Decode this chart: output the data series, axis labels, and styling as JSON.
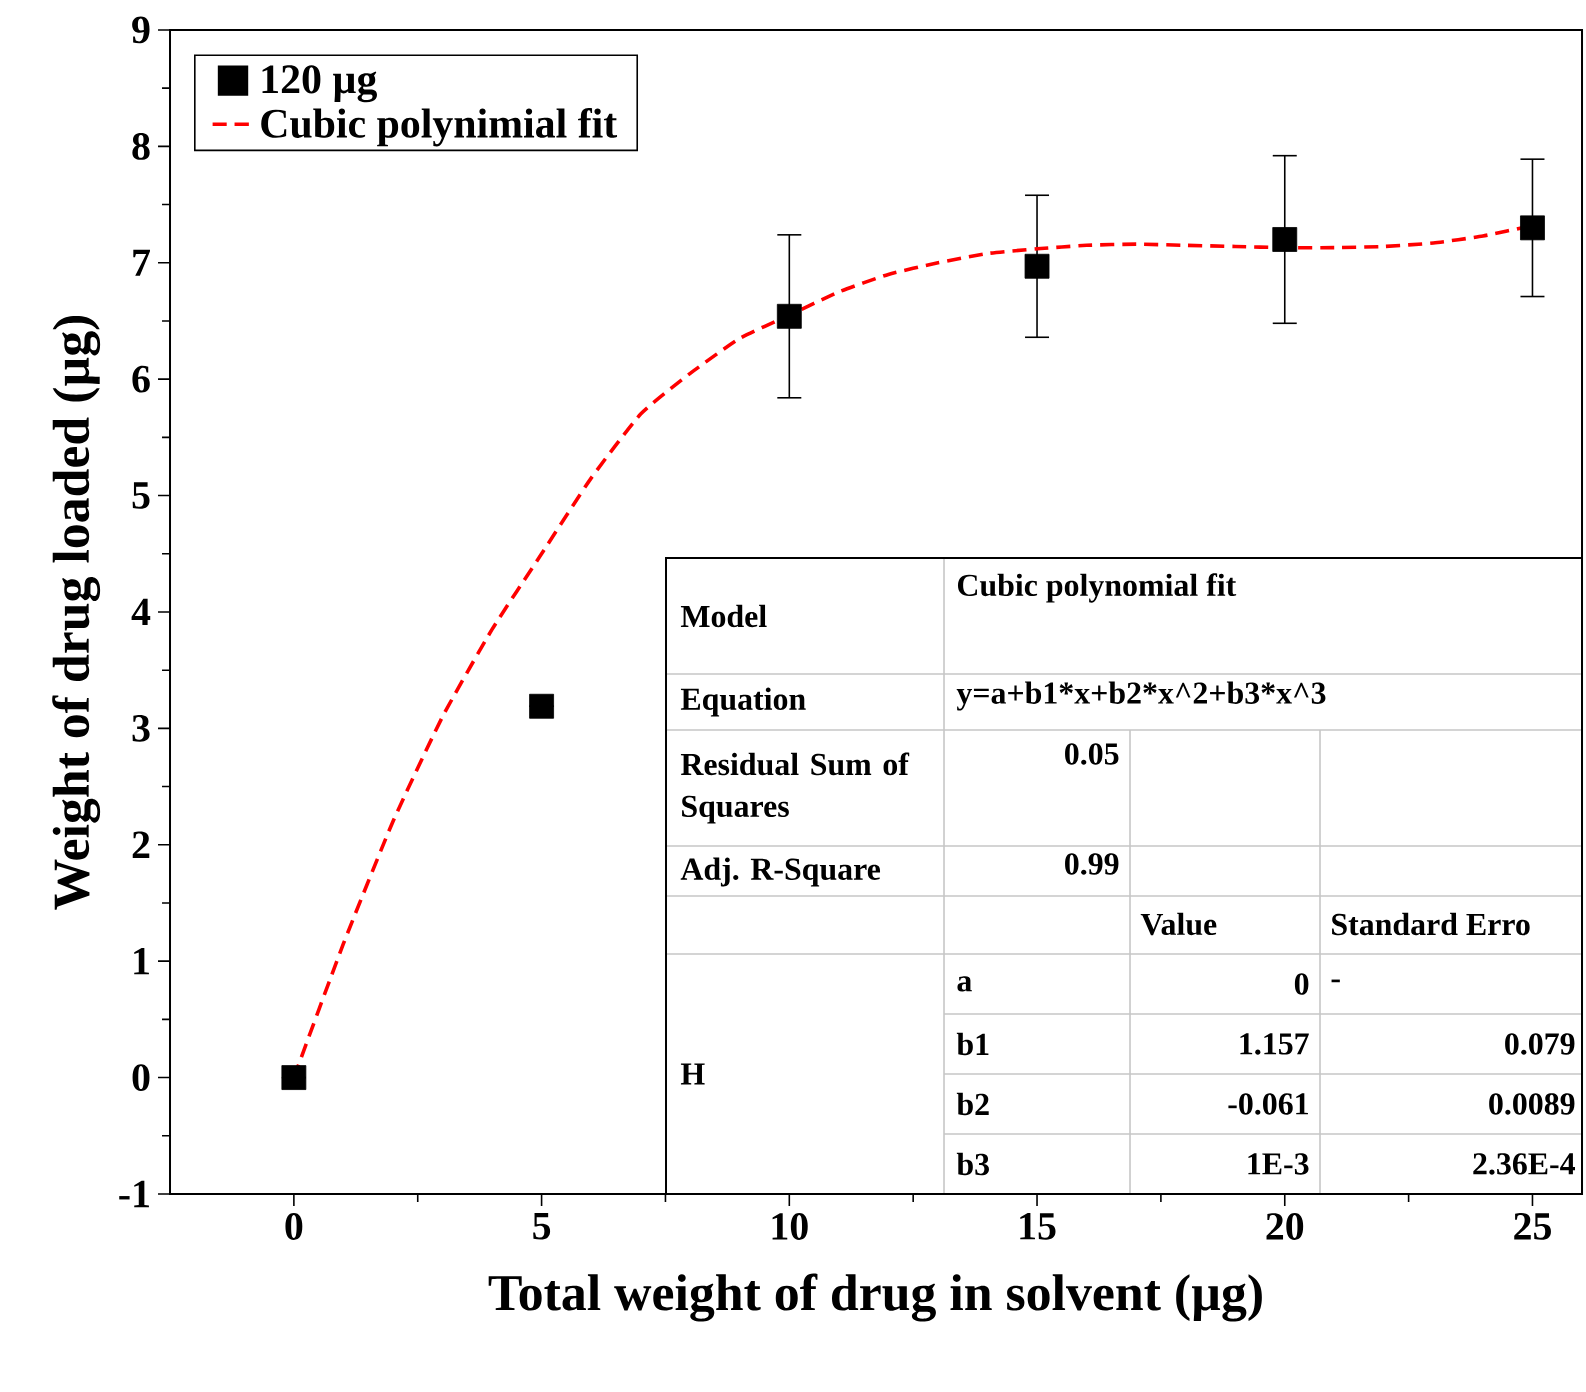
{
  "chart_data": {
    "type": "scatter",
    "xlabel": "Total weight of drug in solvent (µg)",
    "ylabel": "Weight of drug loaded (µg)",
    "xlim": [
      -2.5,
      26
    ],
    "ylim": [
      -1,
      9
    ],
    "xticks": [
      0,
      5,
      10,
      15,
      20,
      25
    ],
    "yticks": [
      -1,
      0,
      1,
      2,
      3,
      4,
      5,
      6,
      7,
      8,
      9
    ],
    "legend": "top left",
    "grid": false,
    "series": [
      {
        "name": "120 µg",
        "marker": "square",
        "color": "#000000",
        "x": [
          0,
          5,
          10,
          15,
          20,
          25
        ],
        "values": [
          0,
          3.19,
          6.54,
          6.97,
          7.2,
          7.3
        ],
        "errors": [
          null,
          null,
          0.7,
          0.61,
          0.72,
          0.59
        ]
      },
      {
        "name": "Cubic polynimial fit",
        "type": "line",
        "marker": "none",
        "line_style": "dashed",
        "color": "#ff0000",
        "x": [
          0,
          1,
          2,
          3,
          4,
          5,
          6,
          7,
          8,
          9,
          10,
          11,
          12,
          13,
          14,
          15,
          16,
          17,
          18,
          19,
          20,
          21,
          22,
          23,
          24,
          25
        ],
        "values": [
          0,
          1.15,
          2.2,
          3.1,
          3.85,
          4.5,
          5.15,
          5.7,
          6.05,
          6.35,
          6.55,
          6.75,
          6.9,
          7.0,
          7.08,
          7.12,
          7.15,
          7.16,
          7.15,
          7.14,
          7.13,
          7.13,
          7.14,
          7.17,
          7.23,
          7.32
        ]
      }
    ],
    "annotations": [
      "Model",
      "Cubic polynomial fit",
      "Equation",
      "y=a+b1*x+b2*x^2+b3*x^3",
      "Residual Sum of Squares",
      "0.05",
      "Adj. R-Square",
      "0.99",
      "Value",
      "Standard Erro",
      "H",
      "a",
      "0",
      "-",
      "b1",
      "1.157",
      "0.079",
      "b2",
      "-0.061",
      "0.0089",
      "b3",
      "1E-3",
      "2.36E-4"
    ]
  }
}
